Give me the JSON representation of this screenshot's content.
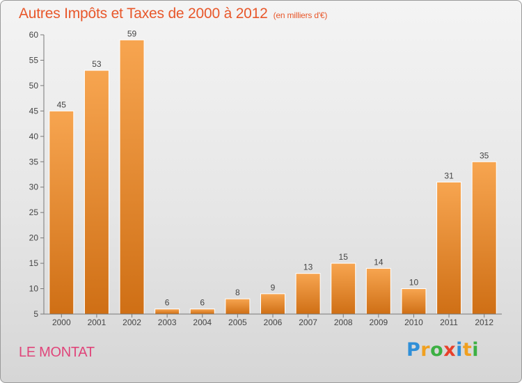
{
  "title": "Autres Impôts et Taxes de 2000 à 2012",
  "title_unit": "(en milliers d'€)",
  "town": "LE MONTAT",
  "brand": {
    "letters": [
      "P",
      "r",
      "o",
      "x",
      "i",
      "t",
      "i"
    ],
    "colors": [
      "#2f8fd8",
      "#f0a020",
      "#3cb043",
      "#e8402a",
      "#2f8fd8",
      "#f0a020",
      "#3cb043"
    ]
  },
  "colors": {
    "bar_top": "#f7a550",
    "bar_bottom": "#cf6f15",
    "title": "#e8572a",
    "town": "#e0457a"
  },
  "chart_data": {
    "type": "bar",
    "title": "Autres Impôts et Taxes de 2000 à 2012",
    "xlabel": "",
    "ylabel": "",
    "categories": [
      "2000",
      "2001",
      "2002",
      "2003",
      "2004",
      "2005",
      "2006",
      "2007",
      "2008",
      "2009",
      "2010",
      "2011",
      "2012"
    ],
    "values": [
      45,
      53,
      59,
      6,
      6,
      8,
      9,
      13,
      15,
      14,
      10,
      31,
      35
    ],
    "ylim": [
      5,
      60
    ],
    "yticks": [
      5,
      10,
      15,
      20,
      25,
      30,
      35,
      40,
      45,
      50,
      55,
      60
    ],
    "grid": false,
    "data_labels": true
  }
}
